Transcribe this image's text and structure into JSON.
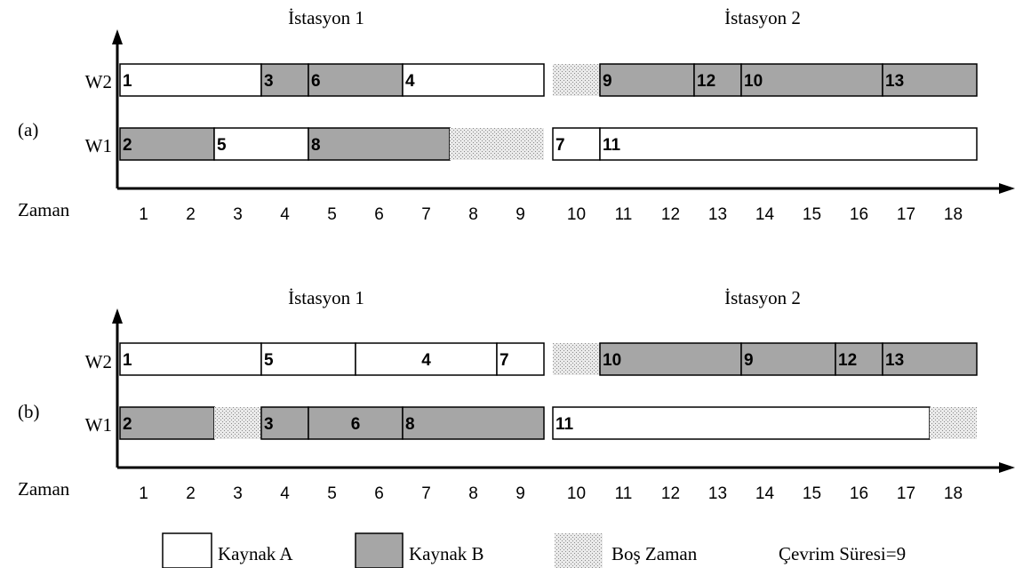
{
  "colors": {
    "resource_a": "#ffffff",
    "resource_b": "#a6a6a6",
    "idle_pattern": "dotted-grey",
    "stroke": "#000000"
  },
  "time_label": "Zaman",
  "time_ticks": [
    "1",
    "2",
    "3",
    "4",
    "5",
    "6",
    "7",
    "8",
    "9",
    "10",
    "11",
    "12",
    "13",
    "14",
    "15",
    "16",
    "17",
    "18"
  ],
  "charts": [
    {
      "panel_label": "(a)",
      "stations": [
        "İstasyon 1",
        "İstasyon 2"
      ],
      "rows": [
        {
          "label": "W2",
          "tasks": [
            {
              "id": "1",
              "start": 0,
              "end": 3,
              "res": "A"
            },
            {
              "id": "3",
              "start": 3,
              "end": 4,
              "res": "B"
            },
            {
              "id": "6",
              "start": 4,
              "end": 6,
              "res": "B"
            },
            {
              "id": "4",
              "start": 6,
              "end": 9,
              "res": "A"
            },
            {
              "id": "",
              "start": 9,
              "end": 10,
              "res": "idle"
            },
            {
              "id": "9",
              "start": 10,
              "end": 12,
              "res": "B"
            },
            {
              "id": "12",
              "start": 12,
              "end": 13,
              "res": "B"
            },
            {
              "id": "10",
              "start": 13,
              "end": 16,
              "res": "B"
            },
            {
              "id": "13",
              "start": 16,
              "end": 18,
              "res": "B"
            }
          ]
        },
        {
          "label": "W1",
          "tasks": [
            {
              "id": "2",
              "start": 0,
              "end": 2,
              "res": "B"
            },
            {
              "id": "5",
              "start": 2,
              "end": 4,
              "res": "A"
            },
            {
              "id": "8",
              "start": 4,
              "end": 7,
              "res": "B"
            },
            {
              "id": "",
              "start": 7,
              "end": 9,
              "res": "idle"
            },
            {
              "id": "7",
              "start": 9,
              "end": 10,
              "res": "A"
            },
            {
              "id": "11",
              "start": 10,
              "end": 18,
              "res": "A"
            }
          ]
        }
      ]
    },
    {
      "panel_label": "(b)",
      "stations": [
        "İstasyon 1",
        "İstasyon 2"
      ],
      "rows": [
        {
          "label": "W2",
          "tasks": [
            {
              "id": "1",
              "start": 0,
              "end": 3,
              "res": "A"
            },
            {
              "id": "5",
              "start": 3,
              "end": 5,
              "res": "A"
            },
            {
              "id": "4",
              "start": 5,
              "end": 8,
              "res": "A",
              "center": true
            },
            {
              "id": "7",
              "start": 8,
              "end": 9,
              "res": "A"
            },
            {
              "id": "",
              "start": 9,
              "end": 10,
              "res": "idle"
            },
            {
              "id": "10",
              "start": 10,
              "end": 13,
              "res": "B"
            },
            {
              "id": "9",
              "start": 13,
              "end": 15,
              "res": "B"
            },
            {
              "id": "12",
              "start": 15,
              "end": 16,
              "res": "B"
            },
            {
              "id": "13",
              "start": 16,
              "end": 18,
              "res": "B"
            }
          ]
        },
        {
          "label": "W1",
          "tasks": [
            {
              "id": "2",
              "start": 0,
              "end": 2,
              "res": "B"
            },
            {
              "id": "",
              "start": 2,
              "end": 3,
              "res": "idle"
            },
            {
              "id": "3",
              "start": 3,
              "end": 4,
              "res": "B"
            },
            {
              "id": "6",
              "start": 4,
              "end": 6,
              "res": "B",
              "center": true
            },
            {
              "id": "8",
              "start": 6,
              "end": 9,
              "res": "B"
            },
            {
              "id": "11",
              "start": 9,
              "end": 17,
              "res": "A"
            },
            {
              "id": "",
              "start": 17,
              "end": 18,
              "res": "idle"
            }
          ]
        }
      ]
    }
  ],
  "legend": {
    "resource_a": "Kaynak A",
    "resource_b": "Kaynak B",
    "idle": "Boş Zaman",
    "cycle": "Çevrim Süresi=9"
  }
}
